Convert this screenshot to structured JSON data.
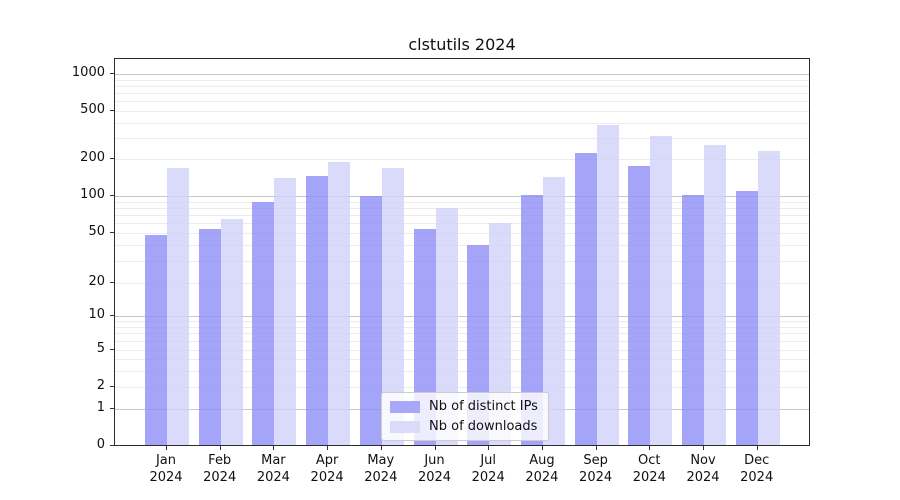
{
  "colors": {
    "ips_swatch": "#a8a8f8",
    "downloads_swatch": "#dbdbf9",
    "ips_fill": "rgba(139,139,246,0.78)",
    "downloads_fill": "rgba(207,207,248,0.78)",
    "grid_major": "#c8c8c8",
    "grid_minor": "#ececec",
    "axis": "#2b2b2b",
    "text": "#111111"
  },
  "legend": {
    "items": [
      {
        "label": "Nb of distinct IPs",
        "color_key": "ips_swatch"
      },
      {
        "label": "Nb of downloads",
        "color_key": "downloads_swatch"
      }
    ]
  },
  "chart_data": {
    "type": "bar",
    "title": "clstutils 2024",
    "x_months": [
      "Jan",
      "Feb",
      "Mar",
      "Apr",
      "May",
      "Jun",
      "Jul",
      "Aug",
      "Sep",
      "Oct",
      "Nov",
      "Dec"
    ],
    "x_year": "2024",
    "y_ticks": [
      0,
      1,
      2,
      5,
      10,
      20,
      50,
      100,
      200,
      500,
      1000
    ],
    "yscale": "symlog",
    "ylim": [
      0,
      1330
    ],
    "grid": "major-and-minor",
    "legend_position": "lower center",
    "grid_major_values": [
      1,
      10,
      100,
      1000
    ],
    "grid_minor_values": [
      2,
      3,
      4,
      5,
      6,
      7,
      8,
      9,
      20,
      30,
      40,
      50,
      60,
      70,
      80,
      90,
      200,
      300,
      400,
      500,
      600,
      700,
      800,
      900
    ],
    "series": [
      {
        "name": "Nb of distinct IPs",
        "color_key": "ips_fill",
        "values": [
          48,
          54,
          90,
          145,
          100,
          54,
          40,
          102,
          225,
          175,
          102,
          110
        ]
      },
      {
        "name": "Nb of downloads",
        "color_key": "downloads_fill",
        "values": [
          170,
          65,
          140,
          190,
          170,
          80,
          60,
          142,
          380,
          310,
          260,
          235
        ]
      }
    ]
  }
}
